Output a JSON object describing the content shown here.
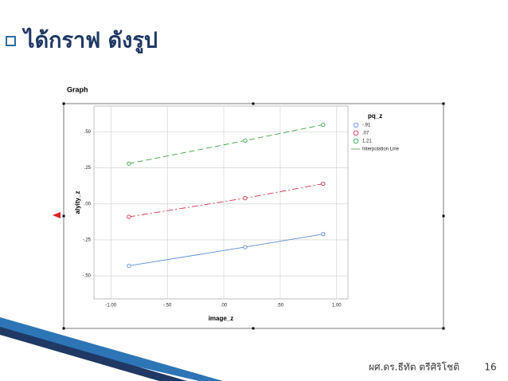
{
  "slide": {
    "title": "ได้กราฟ ดังรูป",
    "author": "ผศ.ดร.ธีทัต ตรีศิริโชติ",
    "page_number": "16"
  },
  "chart_data": {
    "type": "line",
    "title": "Graph",
    "x_label": "image_z",
    "y_label": "alyity_z",
    "legend_title": "pq_z",
    "interpolation_label": "Interpolation Line",
    "xlim": [
      -1.15,
      1.1
    ],
    "xticks": [
      {
        "value": -1,
        "label": "-1.00"
      },
      {
        "value": -0.5,
        "label": "-.50"
      },
      {
        "value": 0,
        "label": ".00"
      },
      {
        "value": 0.5,
        "label": ".50"
      },
      {
        "value": 1,
        "label": "1.00"
      }
    ],
    "ylim": [
      -0.66,
      0.68
    ],
    "yticks": [
      {
        "value": -0.5,
        "label": "-.50"
      },
      {
        "value": -0.25,
        "label": "-.25"
      },
      {
        "value": 0,
        "label": ".00"
      },
      {
        "value": 0.25,
        "label": ".25"
      },
      {
        "value": 0.5,
        "label": ".50"
      }
    ],
    "grid": true,
    "series": [
      {
        "name": "-.91",
        "color": "#5b8fd6",
        "dash": "",
        "x": [
          -0.84,
          0.19,
          0.88
        ],
        "values": [
          -0.43,
          -0.3,
          -0.21
        ]
      },
      {
        "name": ".07",
        "color": "#d0334f",
        "dash": "8 3 2 3",
        "x": [
          -0.84,
          0.19,
          0.88
        ],
        "values": [
          -0.09,
          0.04,
          0.14
        ]
      },
      {
        "name": "1.21",
        "color": "#3aa34a",
        "dash": "7 4",
        "x": [
          -0.84,
          0.19,
          0.88
        ],
        "values": [
          0.28,
          0.44,
          0.55
        ]
      }
    ]
  }
}
